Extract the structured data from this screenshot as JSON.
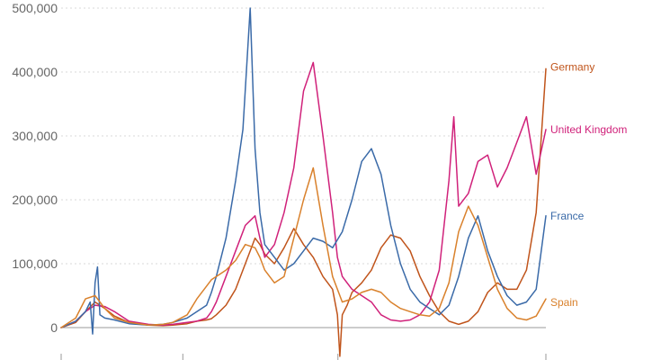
{
  "chart_data": {
    "type": "line",
    "title": "",
    "xlabel": "",
    "ylabel": "",
    "x_domain": [
      0,
      1000
    ],
    "ylim": [
      -50000,
      500000
    ],
    "y_ticks": [
      0,
      100000,
      200000,
      300000,
      400000,
      500000
    ],
    "y_tick_labels": [
      "0",
      "100,000",
      "200,000",
      "300,000",
      "400,000",
      "500,000"
    ],
    "x_ticks": [
      0,
      251,
      571,
      1000
    ],
    "grid": true,
    "legend": "end-of-line labels",
    "series": [
      {
        "name": "Germany",
        "color": "#c0541b",
        "x": [
          0,
          30,
          50,
          70,
          90,
          110,
          140,
          180,
          210,
          230,
          260,
          280,
          300,
          310,
          320,
          340,
          360,
          380,
          400,
          410,
          420,
          440,
          460,
          480,
          500,
          520,
          540,
          560,
          570,
          575,
          580,
          590,
          600,
          620,
          640,
          660,
          680,
          700,
          720,
          740,
          760,
          780,
          800,
          820,
          840,
          860,
          880,
          900,
          920,
          940,
          960,
          980,
          1000
        ],
        "y": [
          0,
          8000,
          25000,
          40000,
          30000,
          18000,
          8000,
          4000,
          3000,
          4000,
          6000,
          10000,
          12000,
          14000,
          20000,
          35000,
          60000,
          100000,
          140000,
          130000,
          115000,
          100000,
          125000,
          155000,
          130000,
          110000,
          80000,
          60000,
          20000,
          -45000,
          20000,
          35000,
          55000,
          70000,
          90000,
          125000,
          145000,
          140000,
          120000,
          80000,
          50000,
          25000,
          10000,
          5000,
          10000,
          25000,
          55000,
          70000,
          60000,
          60000,
          90000,
          180000,
          405000
        ]
      },
      {
        "name": "United Kingdom",
        "color": "#d0217a",
        "x": [
          0,
          30,
          50,
          70,
          90,
          110,
          140,
          180,
          210,
          230,
          260,
          280,
          300,
          310,
          320,
          340,
          360,
          380,
          400,
          410,
          420,
          440,
          460,
          480,
          500,
          520,
          540,
          560,
          570,
          580,
          600,
          620,
          640,
          660,
          680,
          700,
          720,
          740,
          760,
          780,
          800,
          810,
          820,
          840,
          860,
          880,
          900,
          920,
          940,
          960,
          980,
          1000
        ],
        "y": [
          0,
          10000,
          25000,
          35000,
          33000,
          25000,
          10000,
          5000,
          4000,
          5000,
          8000,
          10000,
          15000,
          25000,
          40000,
          80000,
          120000,
          160000,
          175000,
          140000,
          110000,
          130000,
          180000,
          250000,
          370000,
          415000,
          300000,
          180000,
          110000,
          80000,
          60000,
          50000,
          40000,
          20000,
          12000,
          10000,
          12000,
          20000,
          40000,
          90000,
          230000,
          330000,
          190000,
          210000,
          260000,
          270000,
          220000,
          250000,
          290000,
          330000,
          240000,
          310000
        ]
      },
      {
        "name": "France",
        "color": "#3a6aa8",
        "x": [
          0,
          30,
          50,
          60,
          65,
          70,
          75,
          80,
          90,
          110,
          140,
          180,
          210,
          230,
          260,
          280,
          300,
          310,
          320,
          340,
          360,
          375,
          390,
          400,
          410,
          420,
          440,
          460,
          480,
          500,
          520,
          540,
          560,
          580,
          600,
          620,
          640,
          660,
          680,
          700,
          720,
          740,
          760,
          780,
          800,
          820,
          840,
          860,
          880,
          900,
          920,
          940,
          960,
          980,
          1000
        ],
        "y": [
          0,
          10000,
          25000,
          40000,
          -10000,
          70000,
          95000,
          20000,
          15000,
          12000,
          6000,
          4000,
          5000,
          8000,
          15000,
          25000,
          35000,
          55000,
          80000,
          140000,
          230000,
          310000,
          500000,
          280000,
          180000,
          130000,
          110000,
          90000,
          100000,
          120000,
          140000,
          135000,
          125000,
          150000,
          200000,
          260000,
          280000,
          240000,
          160000,
          100000,
          60000,
          40000,
          30000,
          20000,
          35000,
          80000,
          140000,
          175000,
          120000,
          80000,
          50000,
          35000,
          40000,
          60000,
          175000
        ]
      },
      {
        "name": "Spain",
        "color": "#d9812c",
        "x": [
          0,
          30,
          50,
          70,
          90,
          110,
          140,
          180,
          210,
          230,
          260,
          280,
          300,
          310,
          320,
          340,
          360,
          380,
          400,
          410,
          420,
          440,
          460,
          480,
          500,
          520,
          540,
          560,
          580,
          600,
          620,
          640,
          660,
          680,
          700,
          720,
          740,
          760,
          780,
          800,
          820,
          840,
          860,
          880,
          900,
          920,
          940,
          960,
          980,
          1000
        ],
        "y": [
          0,
          15000,
          45000,
          50000,
          30000,
          15000,
          8000,
          4000,
          5000,
          8000,
          20000,
          45000,
          65000,
          75000,
          80000,
          90000,
          105000,
          130000,
          125000,
          110000,
          90000,
          70000,
          80000,
          140000,
          200000,
          250000,
          160000,
          80000,
          40000,
          45000,
          55000,
          60000,
          55000,
          40000,
          30000,
          25000,
          20000,
          18000,
          30000,
          70000,
          150000,
          190000,
          160000,
          110000,
          60000,
          30000,
          15000,
          12000,
          18000,
          45000
        ]
      }
    ]
  }
}
